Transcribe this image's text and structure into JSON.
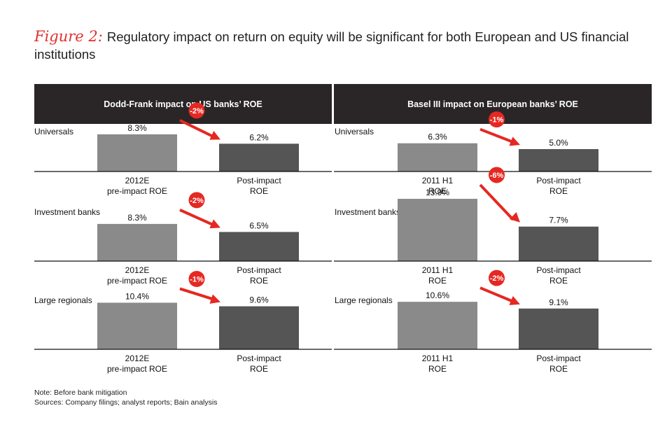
{
  "figure_label": "Figure 2:",
  "title": "Regulatory impact on return on equity will be significant for both European and US financial institutions",
  "note": "Note: Before bank mitigation",
  "sources": "Sources: Company filings; analyst reports; Bain analysis",
  "colors": {
    "pre_bar": "#8a8a8a",
    "post_bar": "#555555",
    "arrow": "#e52822",
    "header_bg": "#2a2627"
  },
  "chart_data": [
    {
      "type": "bar",
      "title": "Dodd-Frank impact on US banks’ ROE",
      "categories": [
        "2012E pre-impact ROE",
        "Post-impact ROE"
      ],
      "category_lines": [
        [
          "2012E",
          "pre-impact ROE"
        ],
        [
          "Post-impact",
          "ROE"
        ]
      ],
      "unit": "%",
      "groups": [
        {
          "label": "Universals",
          "values": [
            8.3,
            6.2
          ],
          "value_labels": [
            "8.3%",
            "6.2%"
          ],
          "change": "-2%"
        },
        {
          "label": "Investment banks",
          "values": [
            8.3,
            6.5
          ],
          "value_labels": [
            "8.3%",
            "6.5%"
          ],
          "change": "-2%"
        },
        {
          "label": "Large regionals",
          "values": [
            10.4,
            9.6
          ],
          "value_labels": [
            "10.4%",
            "9.6%"
          ],
          "change": "-1%"
        }
      ]
    },
    {
      "type": "bar",
      "title": "Basel III impact on European banks’ ROE",
      "categories": [
        "2011 H1 ROE",
        "Post-impact ROE"
      ],
      "category_lines": [
        [
          "2011 H1",
          "ROE"
        ],
        [
          "Post-impact",
          "ROE"
        ]
      ],
      "unit": "%",
      "groups": [
        {
          "label": "Universals",
          "values": [
            6.3,
            5.0
          ],
          "value_labels": [
            "6.3%",
            "5.0%"
          ],
          "change": "-1%"
        },
        {
          "label": "Investment banks",
          "values": [
            13.9,
            7.7
          ],
          "value_labels": [
            "13.9%",
            "7.7%"
          ],
          "change": "-6%"
        },
        {
          "label": "Large regionals",
          "values": [
            10.6,
            9.1
          ],
          "value_labels": [
            "10.6%",
            "9.1%"
          ],
          "change": "-2%"
        }
      ]
    }
  ]
}
